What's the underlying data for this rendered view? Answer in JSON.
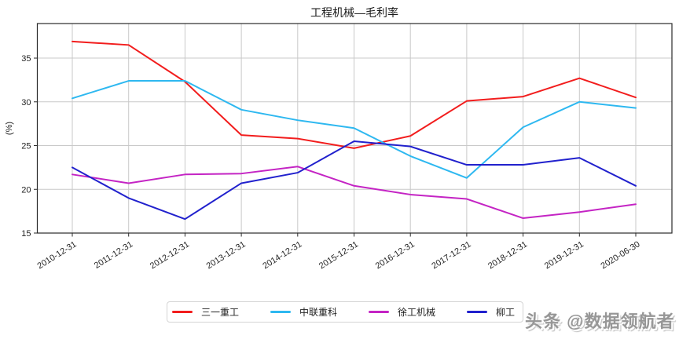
{
  "title": "工程机械—毛利率",
  "watermark": "头条 @数据领航者",
  "chart_data": {
    "type": "line",
    "title": "工程机械—毛利率",
    "xlabel": "",
    "ylabel": "(%)",
    "categories": [
      "2010-12-31",
      "2011-12-31",
      "2012-12-31",
      "2013-12-31",
      "2014-12-31",
      "2015-12-31",
      "2016-12-31",
      "2017-12-31",
      "2018-12-31",
      "2019-12-31",
      "2020-06-30"
    ],
    "series": [
      {
        "name": "三一重工",
        "color": "#f21d1d",
        "values": [
          36.9,
          36.5,
          32.3,
          26.2,
          25.8,
          24.7,
          26.1,
          30.1,
          30.6,
          32.7,
          30.5
        ]
      },
      {
        "name": "中联重科",
        "color": "#2eb8f0",
        "values": [
          30.4,
          32.4,
          32.4,
          29.1,
          27.9,
          27.0,
          23.8,
          21.3,
          27.1,
          30.0,
          29.3
        ]
      },
      {
        "name": "徐工机械",
        "color": "#c424c4",
        "values": [
          21.7,
          20.7,
          21.7,
          21.8,
          22.6,
          20.4,
          19.4,
          18.9,
          16.7,
          17.4,
          18.3
        ]
      },
      {
        "name": "柳工",
        "color": "#2121cd",
        "values": [
          22.5,
          19.0,
          16.6,
          20.7,
          21.9,
          25.5,
          24.9,
          22.8,
          22.8,
          23.6,
          20.4
        ]
      }
    ],
    "ylim": [
      15,
      38.95
    ],
    "yticks": [
      15,
      20,
      25,
      30,
      35
    ],
    "grid": true,
    "legend_position": "bottom"
  }
}
